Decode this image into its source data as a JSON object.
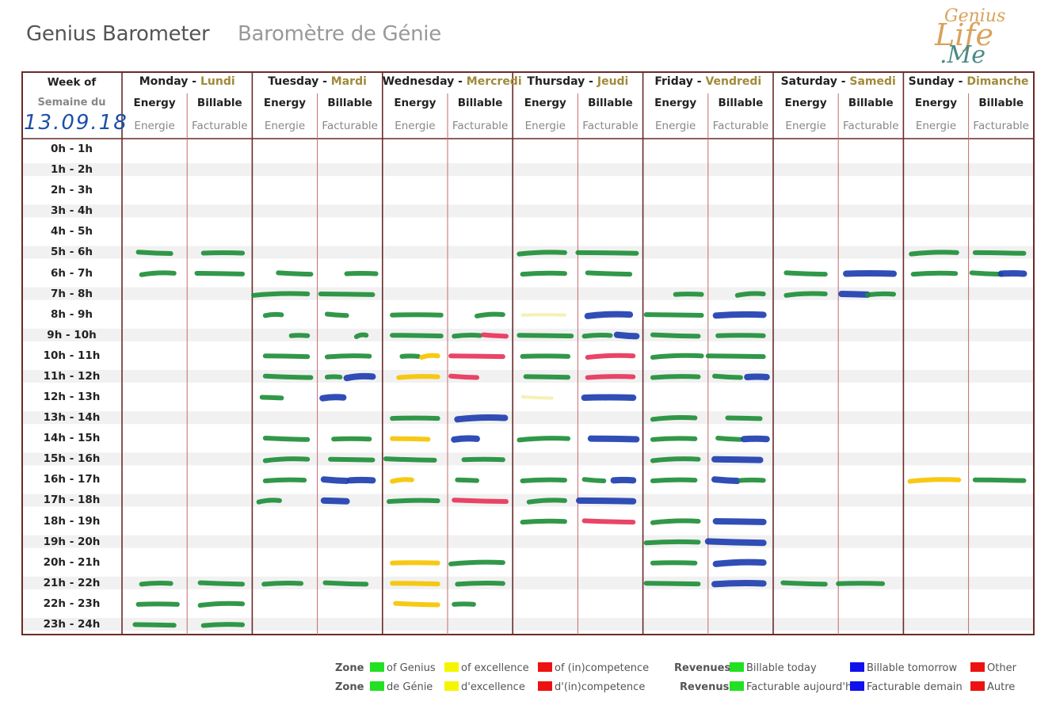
{
  "title": {
    "en": "Genius Barometer",
    "fr": "Baromètre de Génie"
  },
  "logo": {
    "line1": "Genius",
    "line2": "Life",
    "line3": ".Me"
  },
  "week": {
    "label_en": "Week of",
    "label_fr": "Semaine du",
    "date": "13.09.18"
  },
  "columns": {
    "energy_en": "Energy",
    "energy_fr": "Energie",
    "billable_en": "Billable",
    "billable_fr": "Facturable"
  },
  "days": [
    {
      "en": "Monday",
      "fr": "Lundi"
    },
    {
      "en": "Tuesday",
      "fr": "Mardi"
    },
    {
      "en": "Wednesday",
      "fr": "Mercredi"
    },
    {
      "en": "Thursday",
      "fr": "Jeudi"
    },
    {
      "en": "Friday",
      "fr": "Vendredi"
    },
    {
      "en": "Saturday",
      "fr": "Samedi"
    },
    {
      "en": "Sunday",
      "fr": "Dimanche"
    }
  ],
  "hours": [
    "0h - 1h",
    "1h - 2h",
    "2h - 3h",
    "3h - 4h",
    "4h - 5h",
    "5h - 6h",
    "6h - 7h",
    "7h - 8h",
    "8h - 9h",
    "9h - 10h",
    "10h - 11h",
    "11h - 12h",
    "12h - 13h",
    "13h - 14h",
    "14h - 15h",
    "15h - 16h",
    "16h - 17h",
    "17h - 18h",
    "18h - 19h",
    "19h - 20h",
    "20h - 21h",
    "21h - 22h",
    "22h - 23h",
    "23h - 24h"
  ],
  "colors": {
    "green": "#1f8f3a",
    "yellow": "#f5c400",
    "pale_yellow": "#f3f0b0",
    "red": "#e8345a",
    "blue": "#1f3fb0",
    "grid": "#6b2a2a"
  },
  "legend": {
    "zone_en": "Zone",
    "zone_fr": "Zone",
    "revenues_en": "Revenues",
    "revenues_fr": "Revenus",
    "zone_items": [
      {
        "en": "of Genius",
        "fr": "de Génie",
        "color": "#22e022"
      },
      {
        "en": "of excellence",
        "fr": "d'excellence",
        "color": "#f5f500"
      },
      {
        "en": "of (in)competence",
        "fr": "d'(in)competence",
        "color": "#ee1111"
      }
    ],
    "revenue_items": [
      {
        "en": "Billable today",
        "fr": "Facturable aujourd'hui",
        "color": "#22e022"
      },
      {
        "en": "Billable tomorrow",
        "fr": "Facturable demain",
        "color": "#1111ee"
      },
      {
        "en": "Other",
        "fr": "Autre",
        "color": "#ee1111"
      }
    ]
  },
  "marks": [
    {
      "day": 0,
      "col": "energy",
      "hour": 5,
      "color": "green",
      "from": 0.25,
      "to": 0.75
    },
    {
      "day": 0,
      "col": "billable",
      "hour": 5,
      "color": "green",
      "from": 0.25,
      "to": 0.85
    },
    {
      "day": 0,
      "col": "energy",
      "hour": 6,
      "color": "green",
      "from": 0.3,
      "to": 0.8
    },
    {
      "day": 0,
      "col": "billable",
      "hour": 6,
      "color": "green",
      "from": 0.15,
      "to": 0.85
    },
    {
      "day": 0,
      "col": "energy",
      "hour": 21,
      "color": "green",
      "from": 0.3,
      "to": 0.75
    },
    {
      "day": 0,
      "col": "billable",
      "hour": 21,
      "color": "green",
      "from": 0.2,
      "to": 0.85
    },
    {
      "day": 0,
      "col": "energy",
      "hour": 22,
      "color": "green",
      "from": 0.25,
      "to": 0.85
    },
    {
      "day": 0,
      "col": "billable",
      "hour": 22,
      "color": "green",
      "from": 0.2,
      "to": 0.85
    },
    {
      "day": 0,
      "col": "energy",
      "hour": 23,
      "color": "green",
      "from": 0.2,
      "to": 0.8
    },
    {
      "day": 0,
      "col": "billable",
      "hour": 23,
      "color": "green",
      "from": 0.25,
      "to": 0.85
    },
    {
      "day": 1,
      "col": "energy",
      "hour": 6,
      "color": "green",
      "from": 0.4,
      "to": 0.9
    },
    {
      "day": 1,
      "col": "billable",
      "hour": 6,
      "color": "green",
      "from": 0.45,
      "to": 0.9
    },
    {
      "day": 1,
      "col": "energy",
      "hour": 7,
      "color": "green",
      "from": 0.02,
      "to": 0.85
    },
    {
      "day": 1,
      "col": "billable",
      "hour": 7,
      "color": "green",
      "from": 0.05,
      "to": 0.85
    },
    {
      "day": 1,
      "col": "energy",
      "hour": 8,
      "color": "green",
      "from": 0.2,
      "to": 0.45
    },
    {
      "day": 1,
      "col": "billable",
      "hour": 8,
      "color": "green",
      "from": 0.15,
      "to": 0.45
    },
    {
      "day": 1,
      "col": "energy",
      "hour": 9,
      "color": "green",
      "from": 0.6,
      "to": 0.85
    },
    {
      "day": 1,
      "col": "billable",
      "hour": 9,
      "color": "green",
      "from": 0.6,
      "to": 0.75
    },
    {
      "day": 1,
      "col": "energy",
      "hour": 10,
      "color": "green",
      "from": 0.2,
      "to": 0.85
    },
    {
      "day": 1,
      "col": "billable",
      "hour": 10,
      "color": "green",
      "from": 0.15,
      "to": 0.8
    },
    {
      "day": 1,
      "col": "energy",
      "hour": 11,
      "color": "green",
      "from": 0.2,
      "to": 0.9
    },
    {
      "day": 1,
      "col": "billable",
      "hour": 11,
      "color": "green",
      "from": 0.15,
      "to": 0.35
    },
    {
      "day": 1,
      "col": "billable",
      "hour": 11,
      "color": "blue",
      "from": 0.45,
      "to": 0.85
    },
    {
      "day": 1,
      "col": "energy",
      "hour": 12,
      "color": "green",
      "from": 0.15,
      "to": 0.45
    },
    {
      "day": 1,
      "col": "billable",
      "hour": 12,
      "color": "blue",
      "from": 0.08,
      "to": 0.4
    },
    {
      "day": 1,
      "col": "energy",
      "hour": 14,
      "color": "green",
      "from": 0.2,
      "to": 0.85
    },
    {
      "day": 1,
      "col": "billable",
      "hour": 14,
      "color": "green",
      "from": 0.25,
      "to": 0.8
    },
    {
      "day": 1,
      "col": "energy",
      "hour": 15,
      "color": "green",
      "from": 0.2,
      "to": 0.85
    },
    {
      "day": 1,
      "col": "billable",
      "hour": 15,
      "color": "green",
      "from": 0.2,
      "to": 0.85
    },
    {
      "day": 1,
      "col": "energy",
      "hour": 16,
      "color": "green",
      "from": 0.2,
      "to": 0.8
    },
    {
      "day": 1,
      "col": "billable",
      "hour": 16,
      "color": "blue",
      "from": 0.1,
      "to": 0.45
    },
    {
      "day": 1,
      "col": "billable",
      "hour": 16,
      "color": "blue",
      "from": 0.5,
      "to": 0.85
    },
    {
      "day": 1,
      "col": "energy",
      "hour": 17,
      "color": "green",
      "from": 0.1,
      "to": 0.42
    },
    {
      "day": 1,
      "col": "billable",
      "hour": 17,
      "color": "blue",
      "from": 0.1,
      "to": 0.45
    },
    {
      "day": 1,
      "col": "energy",
      "hour": 21,
      "color": "green",
      "from": 0.18,
      "to": 0.75
    },
    {
      "day": 1,
      "col": "billable",
      "hour": 21,
      "color": "green",
      "from": 0.12,
      "to": 0.75
    },
    {
      "day": 2,
      "col": "energy",
      "hour": 8,
      "color": "green",
      "from": 0.15,
      "to": 0.9
    },
    {
      "day": 2,
      "col": "billable",
      "hour": 8,
      "color": "green",
      "from": 0.45,
      "to": 0.85
    },
    {
      "day": 2,
      "col": "energy",
      "hour": 9,
      "color": "green",
      "from": 0.15,
      "to": 0.9
    },
    {
      "day": 2,
      "col": "billable",
      "hour": 9,
      "color": "green",
      "from": 0.1,
      "to": 0.5
    },
    {
      "day": 2,
      "col": "billable",
      "hour": 9,
      "color": "red",
      "from": 0.55,
      "to": 0.9
    },
    {
      "day": 2,
      "col": "energy",
      "hour": 10,
      "color": "green",
      "from": 0.3,
      "to": 0.55
    },
    {
      "day": 2,
      "col": "energy",
      "hour": 10,
      "color": "yellow",
      "from": 0.6,
      "to": 0.85
    },
    {
      "day": 2,
      "col": "billable",
      "hour": 10,
      "color": "red",
      "from": 0.05,
      "to": 0.85
    },
    {
      "day": 2,
      "col": "energy",
      "hour": 11,
      "color": "yellow",
      "from": 0.25,
      "to": 0.85
    },
    {
      "day": 2,
      "col": "billable",
      "hour": 11,
      "color": "red",
      "from": 0.05,
      "to": 0.45
    },
    {
      "day": 2,
      "col": "energy",
      "hour": 13,
      "color": "green",
      "from": 0.15,
      "to": 0.85
    },
    {
      "day": 2,
      "col": "billable",
      "hour": 13,
      "color": "blue",
      "from": 0.15,
      "to": 0.88
    },
    {
      "day": 2,
      "col": "energy",
      "hour": 14,
      "color": "yellow",
      "from": 0.15,
      "to": 0.7
    },
    {
      "day": 2,
      "col": "billable",
      "hour": 14,
      "color": "blue",
      "from": 0.1,
      "to": 0.45
    },
    {
      "day": 2,
      "col": "energy",
      "hour": 15,
      "color": "green",
      "from": 0.05,
      "to": 0.8
    },
    {
      "day": 2,
      "col": "billable",
      "hour": 15,
      "color": "green",
      "from": 0.25,
      "to": 0.85
    },
    {
      "day": 2,
      "col": "energy",
      "hour": 16,
      "color": "yellow",
      "from": 0.15,
      "to": 0.45
    },
    {
      "day": 2,
      "col": "billable",
      "hour": 16,
      "color": "green",
      "from": 0.15,
      "to": 0.45
    },
    {
      "day": 2,
      "col": "energy",
      "hour": 17,
      "color": "green",
      "from": 0.1,
      "to": 0.85
    },
    {
      "day": 2,
      "col": "billable",
      "hour": 17,
      "color": "red",
      "from": 0.1,
      "to": 0.9
    },
    {
      "day": 2,
      "col": "energy",
      "hour": 20,
      "color": "yellow",
      "from": 0.15,
      "to": 0.85
    },
    {
      "day": 2,
      "col": "billable",
      "hour": 20,
      "color": "green",
      "from": 0.05,
      "to": 0.85
    },
    {
      "day": 2,
      "col": "energy",
      "hour": 21,
      "color": "yellow",
      "from": 0.15,
      "to": 0.85
    },
    {
      "day": 2,
      "col": "billable",
      "hour": 21,
      "color": "green",
      "from": 0.15,
      "to": 0.85
    },
    {
      "day": 2,
      "col": "energy",
      "hour": 22,
      "color": "yellow",
      "from": 0.2,
      "to": 0.85
    },
    {
      "day": 2,
      "col": "billable",
      "hour": 22,
      "color": "green",
      "from": 0.1,
      "to": 0.4
    },
    {
      "day": 3,
      "col": "energy",
      "hour": 5,
      "color": "green",
      "from": 0.1,
      "to": 0.8
    },
    {
      "day": 3,
      "col": "billable",
      "hour": 5,
      "color": "green",
      "from": 0.0,
      "to": 0.9
    },
    {
      "day": 3,
      "col": "energy",
      "hour": 6,
      "color": "green",
      "from": 0.15,
      "to": 0.8
    },
    {
      "day": 3,
      "col": "billable",
      "hour": 6,
      "color": "green",
      "from": 0.15,
      "to": 0.8
    },
    {
      "day": 3,
      "col": "energy",
      "hour": 8,
      "color": "pale_yellow",
      "from": 0.15,
      "to": 0.8
    },
    {
      "day": 3,
      "col": "billable",
      "hour": 8,
      "color": "blue",
      "from": 0.15,
      "to": 0.8
    },
    {
      "day": 3,
      "col": "energy",
      "hour": 9,
      "color": "green",
      "from": 0.1,
      "to": 0.9
    },
    {
      "day": 3,
      "col": "billable",
      "hour": 9,
      "color": "green",
      "from": 0.1,
      "to": 0.5
    },
    {
      "day": 3,
      "col": "billable",
      "hour": 9,
      "color": "blue",
      "from": 0.6,
      "to": 0.9
    },
    {
      "day": 3,
      "col": "energy",
      "hour": 10,
      "color": "green",
      "from": 0.15,
      "to": 0.85
    },
    {
      "day": 3,
      "col": "billable",
      "hour": 10,
      "color": "red",
      "from": 0.15,
      "to": 0.85
    },
    {
      "day": 3,
      "col": "energy",
      "hour": 11,
      "color": "green",
      "from": 0.2,
      "to": 0.85
    },
    {
      "day": 3,
      "col": "billable",
      "hour": 11,
      "color": "red",
      "from": 0.15,
      "to": 0.85
    },
    {
      "day": 3,
      "col": "energy",
      "hour": 12,
      "color": "pale_yellow",
      "from": 0.15,
      "to": 0.6
    },
    {
      "day": 3,
      "col": "billable",
      "hour": 12,
      "color": "blue",
      "from": 0.1,
      "to": 0.85
    },
    {
      "day": 3,
      "col": "energy",
      "hour": 14,
      "color": "green",
      "from": 0.1,
      "to": 0.85
    },
    {
      "day": 3,
      "col": "billable",
      "hour": 14,
      "color": "blue",
      "from": 0.2,
      "to": 0.9
    },
    {
      "day": 3,
      "col": "energy",
      "hour": 16,
      "color": "green",
      "from": 0.15,
      "to": 0.8
    },
    {
      "day": 3,
      "col": "billable",
      "hour": 16,
      "color": "green",
      "from": 0.1,
      "to": 0.4
    },
    {
      "day": 3,
      "col": "billable",
      "hour": 16,
      "color": "blue",
      "from": 0.55,
      "to": 0.85
    },
    {
      "day": 3,
      "col": "energy",
      "hour": 17,
      "color": "green",
      "from": 0.25,
      "to": 0.8
    },
    {
      "day": 3,
      "col": "billable",
      "hour": 17,
      "color": "blue",
      "from": 0.02,
      "to": 0.85
    },
    {
      "day": 3,
      "col": "energy",
      "hour": 18,
      "color": "green",
      "from": 0.15,
      "to": 0.8
    },
    {
      "day": 3,
      "col": "billable",
      "hour": 18,
      "color": "red",
      "from": 0.1,
      "to": 0.85
    },
    {
      "day": 4,
      "col": "energy",
      "hour": 7,
      "color": "green",
      "from": 0.5,
      "to": 0.9
    },
    {
      "day": 4,
      "col": "billable",
      "hour": 7,
      "color": "green",
      "from": 0.45,
      "to": 0.85
    },
    {
      "day": 4,
      "col": "energy",
      "hour": 8,
      "color": "green",
      "from": 0.05,
      "to": 0.9
    },
    {
      "day": 4,
      "col": "billable",
      "hour": 8,
      "color": "blue",
      "from": 0.12,
      "to": 0.85
    },
    {
      "day": 4,
      "col": "energy",
      "hour": 9,
      "color": "green",
      "from": 0.15,
      "to": 0.85
    },
    {
      "day": 4,
      "col": "billable",
      "hour": 9,
      "color": "green",
      "from": 0.15,
      "to": 0.85
    },
    {
      "day": 4,
      "col": "energy",
      "hour": 10,
      "color": "green",
      "from": 0.15,
      "to": 0.9
    },
    {
      "day": 4,
      "col": "billable",
      "hour": 10,
      "color": "green",
      "from": 0.0,
      "to": 0.85
    },
    {
      "day": 4,
      "col": "energy",
      "hour": 11,
      "color": "green",
      "from": 0.15,
      "to": 0.85
    },
    {
      "day": 4,
      "col": "billable",
      "hour": 11,
      "color": "green",
      "from": 0.1,
      "to": 0.5
    },
    {
      "day": 4,
      "col": "billable",
      "hour": 11,
      "color": "blue",
      "from": 0.6,
      "to": 0.9
    },
    {
      "day": 4,
      "col": "energy",
      "hour": 13,
      "color": "green",
      "from": 0.15,
      "to": 0.8
    },
    {
      "day": 4,
      "col": "billable",
      "hour": 13,
      "color": "green",
      "from": 0.3,
      "to": 0.8
    },
    {
      "day": 4,
      "col": "energy",
      "hour": 14,
      "color": "green",
      "from": 0.15,
      "to": 0.8
    },
    {
      "day": 4,
      "col": "billable",
      "hour": 14,
      "color": "green",
      "from": 0.15,
      "to": 0.5
    },
    {
      "day": 4,
      "col": "billable",
      "hour": 14,
      "color": "blue",
      "from": 0.55,
      "to": 0.9
    },
    {
      "day": 4,
      "col": "energy",
      "hour": 15,
      "color": "green",
      "from": 0.15,
      "to": 0.85
    },
    {
      "day": 4,
      "col": "billable",
      "hour": 15,
      "color": "blue",
      "from": 0.1,
      "to": 0.8
    },
    {
      "day": 4,
      "col": "energy",
      "hour": 16,
      "color": "green",
      "from": 0.15,
      "to": 0.8
    },
    {
      "day": 4,
      "col": "billable",
      "hour": 16,
      "color": "blue",
      "from": 0.1,
      "to": 0.45
    },
    {
      "day": 4,
      "col": "billable",
      "hour": 16,
      "color": "green",
      "from": 0.5,
      "to": 0.85
    },
    {
      "day": 4,
      "col": "energy",
      "hour": 18,
      "color": "green",
      "from": 0.15,
      "to": 0.85
    },
    {
      "day": 4,
      "col": "billable",
      "hour": 18,
      "color": "blue",
      "from": 0.12,
      "to": 0.85
    },
    {
      "day": 4,
      "col": "energy",
      "hour": 19,
      "color": "green",
      "from": 0.05,
      "to": 0.85
    },
    {
      "day": 4,
      "col": "billable",
      "hour": 19,
      "color": "blue",
      "from": 0.0,
      "to": 0.85
    },
    {
      "day": 4,
      "col": "energy",
      "hour": 20,
      "color": "green",
      "from": 0.15,
      "to": 0.8
    },
    {
      "day": 4,
      "col": "billable",
      "hour": 20,
      "color": "blue",
      "from": 0.12,
      "to": 0.85
    },
    {
      "day": 4,
      "col": "energy",
      "hour": 21,
      "color": "green",
      "from": 0.05,
      "to": 0.85
    },
    {
      "day": 4,
      "col": "billable",
      "hour": 21,
      "color": "blue",
      "from": 0.1,
      "to": 0.85
    },
    {
      "day": 5,
      "col": "energy",
      "hour": 6,
      "color": "green",
      "from": 0.2,
      "to": 0.8
    },
    {
      "day": 5,
      "col": "billable",
      "hour": 6,
      "color": "blue",
      "from": 0.12,
      "to": 0.85
    },
    {
      "day": 5,
      "col": "energy",
      "hour": 7,
      "color": "green",
      "from": 0.2,
      "to": 0.8
    },
    {
      "day": 5,
      "col": "billable",
      "hour": 7,
      "color": "blue",
      "from": 0.05,
      "to": 0.45
    },
    {
      "day": 5,
      "col": "billable",
      "hour": 7,
      "color": "green",
      "from": 0.45,
      "to": 0.85
    },
    {
      "day": 5,
      "col": "energy",
      "hour": 21,
      "color": "green",
      "from": 0.15,
      "to": 0.8
    },
    {
      "day": 5,
      "col": "billable",
      "hour": 21,
      "color": "green",
      "from": 0.0,
      "to": 0.68
    },
    {
      "day": 6,
      "col": "energy",
      "hour": 5,
      "color": "green",
      "from": 0.12,
      "to": 0.82
    },
    {
      "day": 6,
      "col": "billable",
      "hour": 5,
      "color": "green",
      "from": 0.1,
      "to": 0.85
    },
    {
      "day": 6,
      "col": "energy",
      "hour": 6,
      "color": "green",
      "from": 0.15,
      "to": 0.8
    },
    {
      "day": 6,
      "col": "billable",
      "hour": 6,
      "color": "green",
      "from": 0.05,
      "to": 0.5
    },
    {
      "day": 6,
      "col": "billable",
      "hour": 6,
      "color": "blue",
      "from": 0.5,
      "to": 0.85
    },
    {
      "day": 6,
      "col": "energy",
      "hour": 16,
      "color": "yellow",
      "from": 0.1,
      "to": 0.85
    },
    {
      "day": 6,
      "col": "billable",
      "hour": 16,
      "color": "green",
      "from": 0.1,
      "to": 0.85
    }
  ]
}
